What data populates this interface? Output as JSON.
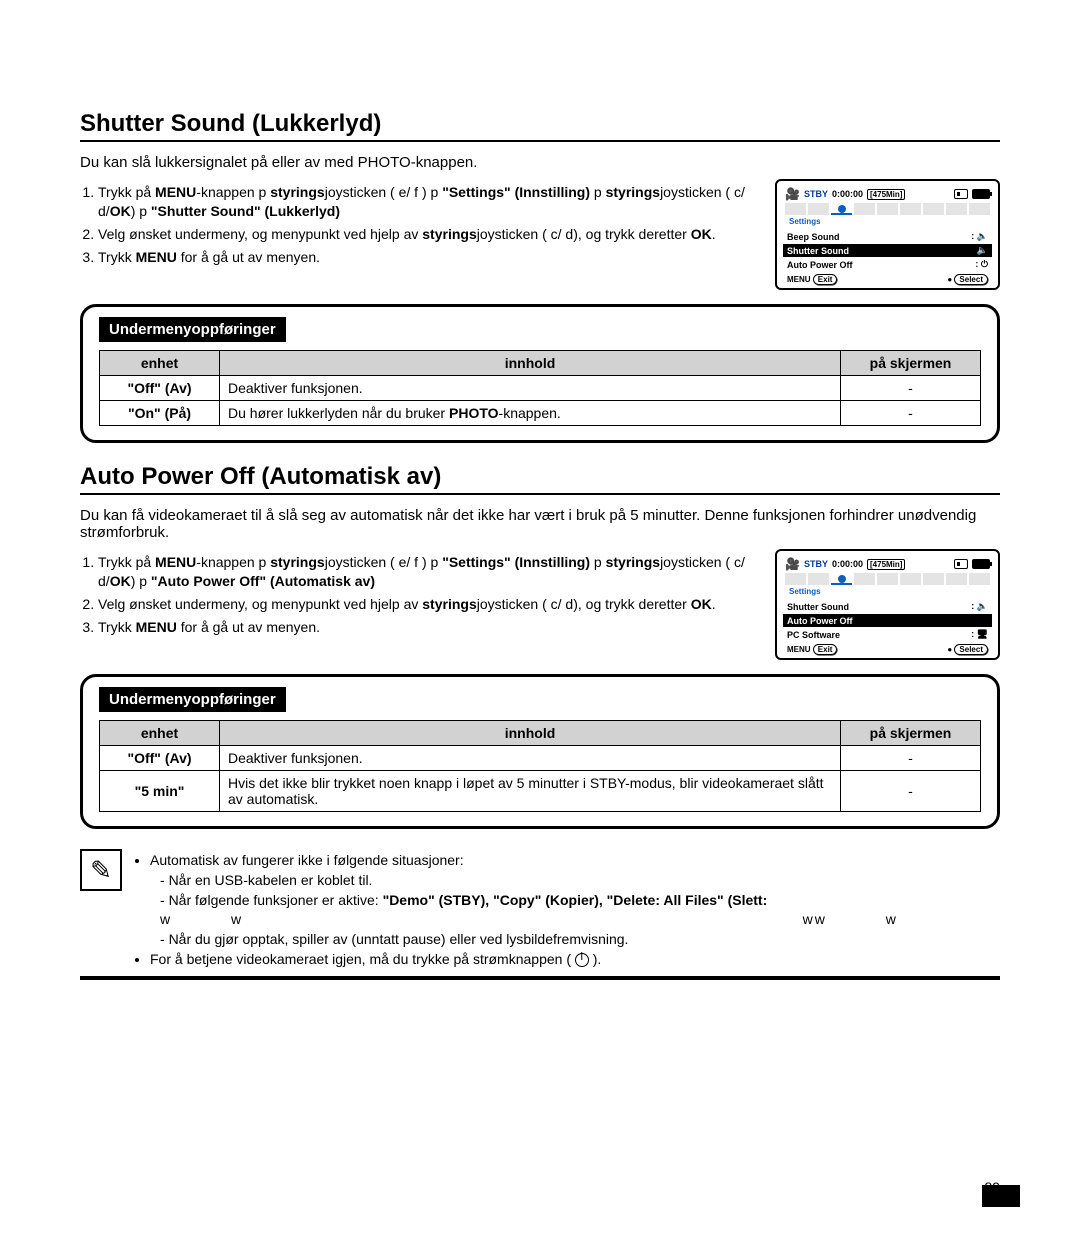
{
  "page_number": "89",
  "shutter": {
    "title": "Shutter Sound (Lukkerlyd)",
    "intro": "Du kan slå lukkersignalet på eller av med PHOTO-knappen.",
    "step1_a": "Trykk på ",
    "step1_menu": "MENU",
    "step1_b": "-knappen  p ",
    "step1_styr": "styrings",
    "step1_c": "joysticken ( e/ f )  p ",
    "step1_settings": "\"Settings\" (Innstilling)",
    "step1_d": "  p ",
    "step1_e": "joysticken ( c/ d/",
    "step1_ok": "OK",
    "step1_f": ")  p ",
    "step1_target": "\"Shutter Sound\" (Lukkerlyd)",
    "step2_a": "Velg ønsket undermeny, og menypunkt ved hjelp av ",
    "step2_b": "joysticken ( c/ d), og trykk deretter ",
    "step2_ok2": "OK",
    "step2_c": ".",
    "step3_a": "Trykk ",
    "step3_b": " for å gå ut av menyen.",
    "lcd": {
      "stby": "STBY",
      "tc": "0:00:00",
      "rem": "[475Min]",
      "settings": "Settings",
      "menu": [
        "Beep Sound",
        "Shutter Sound",
        "Auto Power Off"
      ],
      "footer_l1": "MENU",
      "footer_l2": "Exit",
      "footer_r1": "●",
      "footer_r2": "Select"
    },
    "sub_label": "Undermenyoppføringer",
    "th0": "enhet",
    "th1": "innhold",
    "th2": "på skjermen",
    "r1c0": "\"Off\" (Av)",
    "r1c1": "Deaktiver funksjonen.",
    "r1c2": "-",
    "r2c0": "\"On\" (På)",
    "r2c1a": "Du hører lukkerlyden når du bruker ",
    "r2c1b": "PHOTO",
    "r2c1c": "-knappen.",
    "r2c2": "-"
  },
  "apo": {
    "title": "Auto Power Off (Automatisk av)",
    "intro": "Du kan få videokameraet til å slå seg av automatisk når det ikke har vært i bruk på 5 minutter. Denne funksjonen forhindrer unødvendig strømforbruk.",
    "step1_a": "Trykk på ",
    "step1_menu": "MENU",
    "step1_b": "-knappen  p ",
    "step1_styr": "styrings",
    "step1_c": "joysticken ( e/ f )  p ",
    "step1_settings": "\"Settings\" (Innstilling)",
    "step1_d": "  p ",
    "step1_e": "joysticken ( c/ d/",
    "step1_ok": "OK",
    "step1_f": ")  p ",
    "step1_target": "\"Auto Power Off\" (Automatisk av)",
    "step2_a": "Velg ønsket undermeny, og menypunkt ved hjelp av ",
    "step2_b": "joysticken ( c/ d), og trykk deretter ",
    "step2_ok2": "OK",
    "step2_c": ".",
    "step3_a": "Trykk ",
    "step3_b": " for å gå ut av menyen.",
    "lcd": {
      "settings": "Settings",
      "menu": [
        "Shutter Sound",
        "Auto Power Off",
        "PC Software"
      ]
    },
    "sub_label": "Undermenyoppføringer",
    "th0": "enhet",
    "th1": "innhold",
    "th2": "på skjermen",
    "r1c0": "\"Off\" (Av)",
    "r1c1": "Deaktiver funksjonen.",
    "r1c2": "-",
    "r2c0": "\"5 min\"",
    "r2c1": "Hvis det ikke blir trykket noen knapp i løpet av 5 minutter i STBY-modus, blir videokameraet slått av automatisk.",
    "r2c2": "-"
  },
  "note": {
    "li1": "Automatisk av fungerer ikke i følgende situasjoner:",
    "li1a": "Når en USB-kabelen er koblet til.",
    "li1b_a": "Når følgende funksjoner er aktive: ",
    "li1b_b": "\"Demo\" (STBY), \"Copy\" (Kopier), \"Delete: All Files\" (Slett:",
    "li1b_w": "w          w                                                                                               ww          w",
    "li1c": "Når du gjør opptak, spiller av (unntatt pause) eller ved lysbildefremvisning.",
    "li2_a": "For å betjene videokameraet igjen, må du trykke på strømknappen ( ",
    "li2_b": " )."
  }
}
